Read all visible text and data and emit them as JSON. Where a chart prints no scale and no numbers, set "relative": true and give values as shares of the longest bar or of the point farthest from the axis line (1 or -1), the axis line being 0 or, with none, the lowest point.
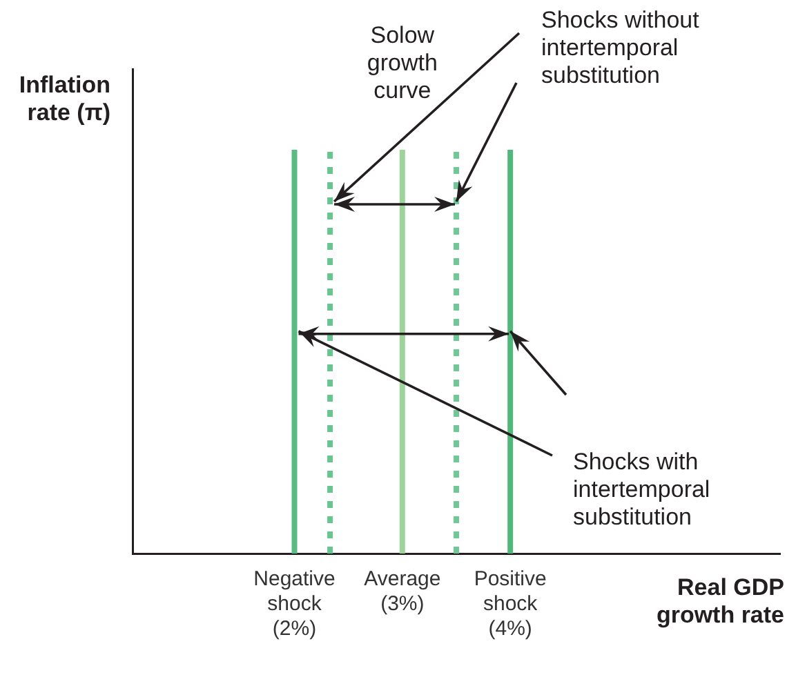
{
  "chart_data": {
    "type": "line",
    "relative": true,
    "xlabel": "Real GDP growth rate",
    "ylabel": "Inflation rate (π)",
    "xlim": [
      0.5,
      6.5
    ],
    "xticks": [
      {
        "value": 2,
        "label": "Negative shock (2%)"
      },
      {
        "value": 3,
        "label": "Average (3%)"
      },
      {
        "value": 4,
        "label": "Positive shock (4%)"
      }
    ],
    "series": [
      {
        "color": "#58bb81",
        "line_style": "solid",
        "x": [
          2,
          2
        ],
        "values": [
          0,
          1
        ]
      },
      {
        "color": "#68c590",
        "line_style": "dotted",
        "x": [
          2.33,
          2.33
        ],
        "values": [
          0,
          1
        ]
      },
      {
        "name": "Solow growth curve",
        "color": "#9ed49c",
        "line_style": "solid",
        "x": [
          3,
          3
        ],
        "values": [
          0,
          1
        ]
      },
      {
        "color": "#70c896",
        "line_style": "dotted",
        "x": [
          3.5,
          3.5
        ],
        "values": [
          0,
          1
        ]
      },
      {
        "color": "#50b87b",
        "line_style": "solid",
        "x": [
          4,
          4
        ],
        "values": [
          0,
          1
        ]
      }
    ],
    "annotations": [
      "Shocks without intertemporal substitution",
      "Shocks with intertemporal substitution"
    ],
    "grid": false,
    "legend": false,
    "marker": "none"
  }
}
